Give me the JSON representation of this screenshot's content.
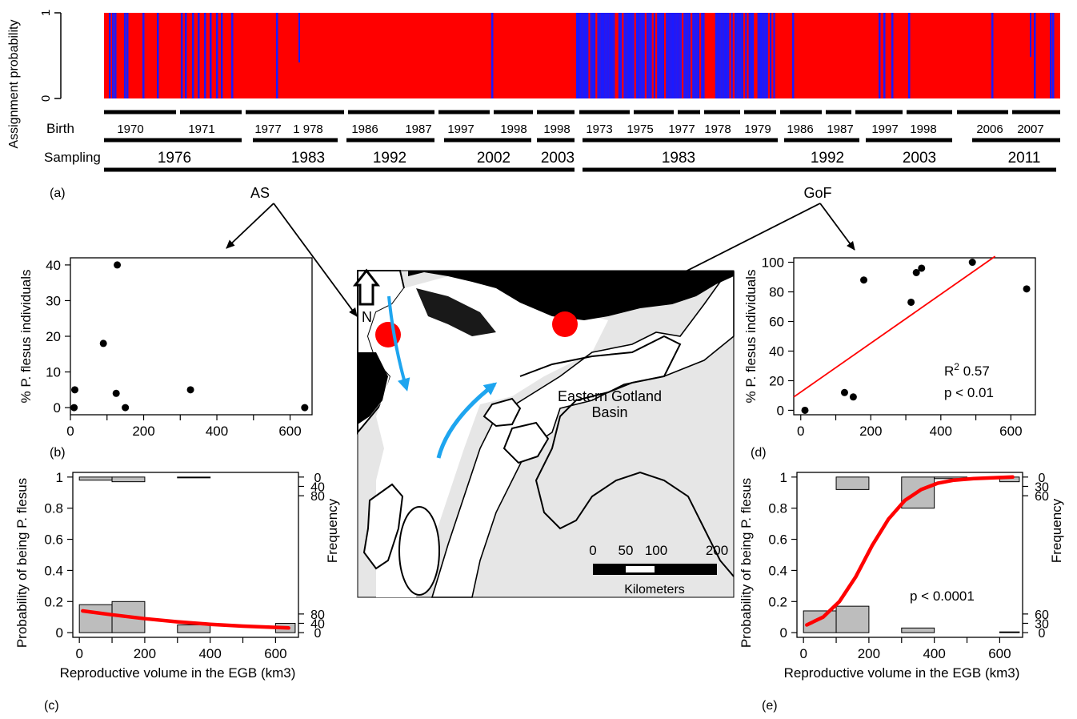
{
  "panel_labels": {
    "a": "(a)",
    "b": "(b)",
    "c": "(c)",
    "d": "(d)",
    "e": "(e)"
  },
  "region_labels": {
    "as": "AS",
    "gof": "GoF"
  },
  "structure_plot": {
    "ylabel": "Assignment probability",
    "ticks": [
      "0",
      "1"
    ],
    "birth_label": "Birth",
    "sampling_label": "Sampling",
    "birth_years": [
      "1970",
      "1971",
      "1977",
      "1 978",
      "1986",
      "1987",
      "1997",
      "1998",
      "1998",
      "1973",
      "1975",
      "1977",
      "1978",
      "1979",
      "1986",
      "1987",
      "1997",
      "1998",
      "2006",
      "2007"
    ],
    "sampling_years": [
      "1976",
      "1983",
      "1992",
      "2002",
      "2003",
      "1983",
      "1992",
      "2003",
      "2011"
    ],
    "colors": {
      "cluster1": "#ff0000",
      "cluster2": "#1a1aff"
    }
  },
  "map": {
    "north_label": "N",
    "basin_label_line1": "Eastern Gotland",
    "basin_label_line2": "Basin",
    "scale_ticks": [
      "0",
      "50",
      "100",
      "200"
    ],
    "scale_unit": "Kilometers",
    "colors": {
      "sea": "#e6e6e6",
      "site": "#ff0000",
      "current": "#1ea5ef"
    }
  },
  "chart_data": [
    {
      "id": "b",
      "type": "scatter",
      "xlabel": "",
      "ylabel": "% P. flesus individuals",
      "xlim": [
        0,
        660
      ],
      "ylim": [
        -2,
        42
      ],
      "xticks": [
        0,
        200,
        400,
        600
      ],
      "yticks": [
        0,
        10,
        20,
        30,
        40
      ],
      "points": [
        [
          10,
          0
        ],
        [
          12,
          5
        ],
        [
          90,
          18
        ],
        [
          125,
          4
        ],
        [
          128,
          40
        ],
        [
          150,
          0
        ],
        [
          328,
          5
        ],
        [
          640,
          0
        ]
      ]
    },
    {
      "id": "c",
      "type": "line",
      "xlabel": "Reproductive volume in the EGB (km3)",
      "ylabel": "Probability of being P. flesus",
      "ylabel_right": "Frequency",
      "xlim": [
        -20,
        670
      ],
      "ylim": [
        -0.03,
        1.03
      ],
      "xticks": [
        0,
        200,
        400,
        600
      ],
      "yticks": [
        0,
        0.2,
        0.4,
        0.6,
        0.8,
        1
      ],
      "right_ticks_top": [
        "0",
        "40",
        "80"
      ],
      "right_ticks_bottom": [
        "80",
        "40",
        "0"
      ],
      "curve": [
        [
          10,
          0.14
        ],
        [
          100,
          0.115
        ],
        [
          200,
          0.09
        ],
        [
          300,
          0.07
        ],
        [
          400,
          0.054
        ],
        [
          500,
          0.042
        ],
        [
          640,
          0.03
        ]
      ],
      "hist_bottom": [
        {
          "x0": 0,
          "x1": 100,
          "h": 0.18
        },
        {
          "x0": 100,
          "x1": 200,
          "h": 0.2
        },
        {
          "x0": 300,
          "x1": 400,
          "h": 0.05
        },
        {
          "x0": 600,
          "x1": 660,
          "h": 0.06
        }
      ],
      "hist_top": [
        {
          "x0": 0,
          "x1": 100,
          "h": 0.02
        },
        {
          "x0": 100,
          "x1": 200,
          "h": 0.03
        },
        {
          "x0": 300,
          "x1": 400,
          "h": 0.005
        }
      ]
    },
    {
      "id": "d",
      "type": "scatter",
      "xlabel": "",
      "ylabel": "% P. flesus individuals",
      "xlim": [
        -20,
        670
      ],
      "ylim": [
        -3,
        103
      ],
      "xticks": [
        0,
        200,
        400,
        600
      ],
      "yticks": [
        0,
        20,
        40,
        60,
        80,
        100
      ],
      "points": [
        [
          12,
          0
        ],
        [
          125,
          12
        ],
        [
          150,
          9
        ],
        [
          180,
          88
        ],
        [
          315,
          73
        ],
        [
          330,
          93
        ],
        [
          345,
          96
        ],
        [
          490,
          100
        ],
        [
          645,
          82
        ]
      ],
      "fit_line": [
        [
          -20,
          9
        ],
        [
          555,
          104
        ]
      ],
      "annotation_r2": "0.57",
      "annotation_p": "p < 0.01"
    },
    {
      "id": "e",
      "type": "line",
      "xlabel": "Reproductive volume in the EGB (km3)",
      "ylabel": "Probability of being P. flesus",
      "ylabel_right": "Frequency",
      "xlim": [
        -20,
        670
      ],
      "ylim": [
        -0.03,
        1.03
      ],
      "xticks": [
        0,
        200,
        400,
        600
      ],
      "yticks": [
        0,
        0.2,
        0.4,
        0.6,
        0.8,
        1
      ],
      "right_ticks_top": [
        "0",
        "30",
        "60"
      ],
      "right_ticks_bottom": [
        "60",
        "30",
        "0"
      ],
      "annotation_p": "p < 0.0001",
      "curve": [
        [
          10,
          0.05
        ],
        [
          60,
          0.1
        ],
        [
          110,
          0.2
        ],
        [
          160,
          0.36
        ],
        [
          210,
          0.56
        ],
        [
          260,
          0.73
        ],
        [
          310,
          0.85
        ],
        [
          360,
          0.92
        ],
        [
          410,
          0.96
        ],
        [
          460,
          0.98
        ],
        [
          520,
          0.99
        ],
        [
          640,
          1.0
        ]
      ],
      "hist_bottom": [
        {
          "x0": 0,
          "x1": 100,
          "h": 0.14
        },
        {
          "x0": 100,
          "x1": 200,
          "h": 0.17
        },
        {
          "x0": 300,
          "x1": 400,
          "h": 0.03
        },
        {
          "x0": 600,
          "x1": 660,
          "h": 0.005
        }
      ],
      "hist_top": [
        {
          "x0": 100,
          "x1": 200,
          "h": 0.08
        },
        {
          "x0": 300,
          "x1": 400,
          "h": 0.2
        },
        {
          "x0": 400,
          "x1": 500,
          "h": 0.01
        },
        {
          "x0": 600,
          "x1": 660,
          "h": 0.03
        }
      ]
    }
  ]
}
